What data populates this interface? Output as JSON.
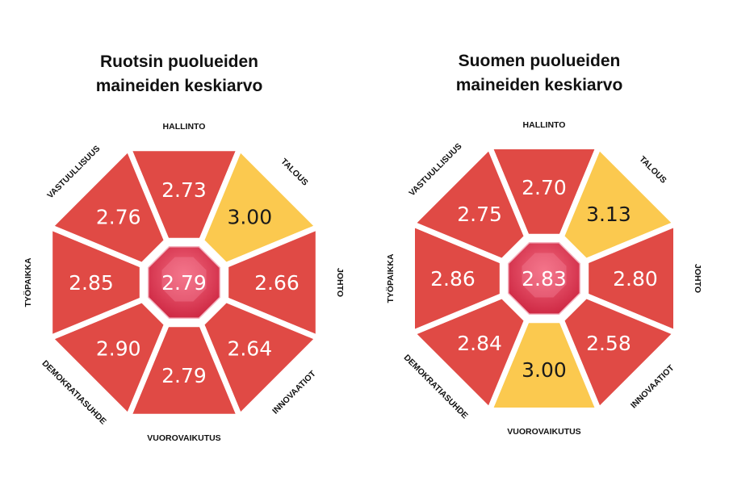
{
  "chart_data": [
    {
      "type": "radial-segments",
      "title_lines": [
        "Ruotsin puolueiden",
        "maineiden keskiarvo"
      ],
      "center_value": "2.79",
      "segments": [
        {
          "label": "HALLINTO",
          "value": 2.73
        },
        {
          "label": "TALOUS",
          "value": 3.0,
          "highlight": true
        },
        {
          "label": "JOHTO",
          "value": 2.66
        },
        {
          "label": "INNOVAATIOT",
          "value": 2.64
        },
        {
          "label": "VUOROVAIKUTUS",
          "value": 2.79
        },
        {
          "label": "DEMOKRATIASUHDE",
          "value": 2.9
        },
        {
          "label": "TYÖPAIKKA",
          "value": 2.85
        },
        {
          "label": "VASTUULLISUUS",
          "value": 2.76
        }
      ]
    },
    {
      "type": "radial-segments",
      "title_lines": [
        "Suomen puolueiden",
        "maineiden keskiarvo"
      ],
      "center_value": "2.83",
      "segments": [
        {
          "label": "HALLINTO",
          "value": 2.7
        },
        {
          "label": "TALOUS",
          "value": 3.13,
          "highlight": true
        },
        {
          "label": "JOHTO",
          "value": 2.8
        },
        {
          "label": "INNOVAATIOT",
          "value": 2.58
        },
        {
          "label": "VUOROVAIKUTUS",
          "value": 3.0,
          "highlight": true
        },
        {
          "label": "DEMOKRATIASUHDE",
          "value": 2.84
        },
        {
          "label": "TYÖPAIKKA",
          "value": 2.86
        },
        {
          "label": "VASTUULLISUUS",
          "value": 2.75
        }
      ]
    }
  ],
  "colors": {
    "segment": "#e04a45",
    "highlight": "#fbc94f",
    "center": "#e8445c",
    "center_light": "#f58aa0"
  }
}
